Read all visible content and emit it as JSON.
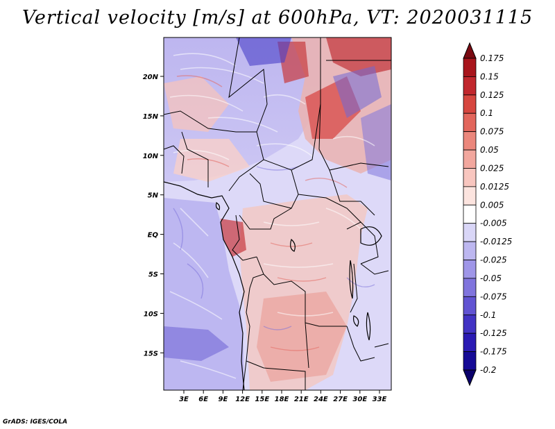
{
  "title": "Vertical velocity [m/s] at 600hPa, VT: 2020031115",
  "footer": "GrADS: IGES/COLA",
  "map": {
    "lat_labels": [
      "20N",
      "15N",
      "10N",
      "5N",
      "EQ",
      "5S",
      "10S",
      "15S"
    ],
    "lon_labels": [
      "3E",
      "6E",
      "9E",
      "12E",
      "15E",
      "18E",
      "21E",
      "24E",
      "27E",
      "30E",
      "33E"
    ]
  },
  "colorbar": {
    "labels": [
      "0.175",
      "0.15",
      "0.125",
      "0.1",
      "0.075",
      "0.05",
      "0.025",
      "0.0125",
      "0.005",
      "-0.005",
      "-0.0125",
      "-0.025",
      "-0.05",
      "-0.075",
      "-0.1",
      "-0.125",
      "-0.175",
      "-0.2"
    ],
    "colors": [
      "#7a0a12",
      "#a8151c",
      "#c1272d",
      "#d6463f",
      "#e2665c",
      "#eb877c",
      "#f2a79e",
      "#f8c6bf",
      "#fce4df",
      "#ffffff",
      "#d9d6f7",
      "#bdb7f0",
      "#9f96e8",
      "#8074dd",
      "#6153d2",
      "#4233c4",
      "#2a1ab3",
      "#150a96",
      "#0a006b"
    ]
  }
}
